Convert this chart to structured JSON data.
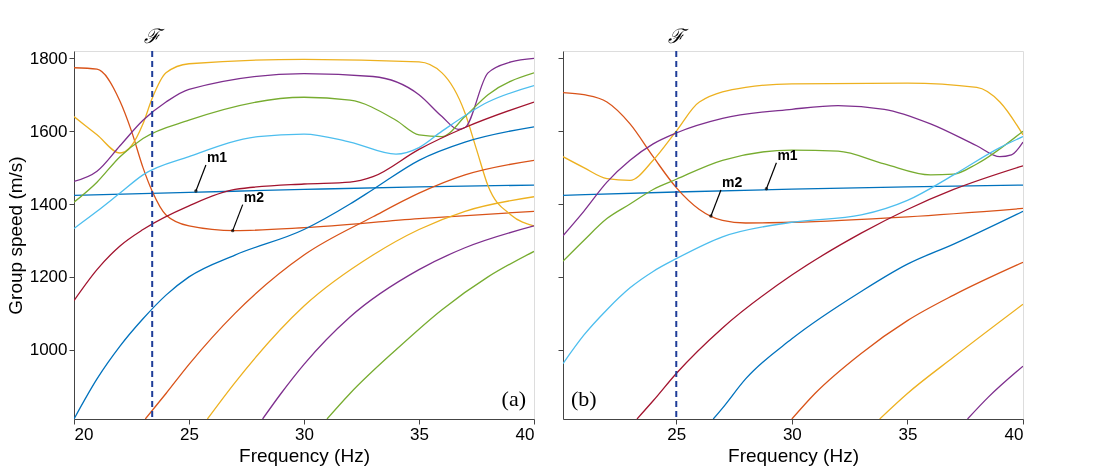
{
  "chart_data": [
    {
      "type": "line",
      "xlabel": "Frequency (Hz)",
      "ylabel": "Group speed (m/s)",
      "xlim": [
        20,
        40
      ],
      "ylim": [
        810,
        1820
      ],
      "xticks": [
        20,
        25,
        30,
        35,
        40
      ],
      "yticks": [
        1000,
        1200,
        1400,
        1600,
        1800
      ],
      "grid": false,
      "legend": false,
      "marker": "none",
      "line_style": "solid",
      "annotations": [
        {
          "text": "m1",
          "x": 25.3,
          "y": 1436
        },
        {
          "text": "m2",
          "x": 26.9,
          "y": 1327
        },
        "(a)"
      ],
      "ref_lines": [
        {
          "axis": "x",
          "value": 23.4,
          "label": "ℱ",
          "color": "#1f3d99",
          "line_style": "dashed"
        }
      ],
      "series": [
        {
          "color": "#0072bd",
          "x": [
            20,
            25,
            30,
            35,
            40
          ],
          "values": [
            1424,
            1432,
            1440,
            1447,
            1452
          ]
        },
        {
          "color": "#d95319",
          "x": [
            20,
            21,
            22,
            22.5,
            23,
            23.4,
            24,
            25,
            27,
            30,
            35,
            40
          ],
          "values": [
            1774,
            1770,
            1682,
            1600,
            1500,
            1435,
            1370,
            1340,
            1327,
            1335,
            1360,
            1380
          ]
        },
        {
          "color": "#edb120",
          "x": [
            20,
            21,
            22,
            22.5,
            23,
            23.4,
            24,
            25,
            30,
            35,
            36,
            37,
            37.5,
            38,
            39,
            40
          ],
          "values": [
            1640,
            1590,
            1540,
            1560,
            1620,
            1690,
            1760,
            1785,
            1797,
            1790,
            1760,
            1650,
            1550,
            1450,
            1370,
            1340
          ]
        },
        {
          "color": "#7e2f8e",
          "x": [
            20,
            21,
            22,
            23,
            24,
            25,
            30,
            33,
            35,
            36,
            36.7,
            37,
            38,
            39,
            40
          ],
          "values": [
            1462,
            1490,
            1560,
            1630,
            1680,
            1715,
            1758,
            1750,
            1700,
            1640,
            1605,
            1610,
            1760,
            1790,
            1800
          ]
        },
        {
          "color": "#77ac30",
          "x": [
            20,
            21,
            22,
            23,
            25,
            30,
            32,
            34,
            35,
            36,
            37,
            38,
            40
          ],
          "values": [
            1405,
            1460,
            1530,
            1580,
            1630,
            1693,
            1685,
            1630,
            1590,
            1585,
            1640,
            1700,
            1760
          ]
        },
        {
          "color": "#4dbeee",
          "x": [
            20,
            21,
            22,
            23,
            25,
            28,
            30,
            32,
            34,
            35,
            36,
            38,
            40
          ],
          "values": [
            1333,
            1380,
            1430,
            1480,
            1530,
            1585,
            1592,
            1570,
            1537,
            1555,
            1600,
            1680,
            1725
          ]
        },
        {
          "color": "#a2142f",
          "x": [
            20,
            21,
            22,
            23,
            25,
            27,
            30,
            32,
            33,
            35,
            37,
            40
          ],
          "values": [
            1135,
            1220,
            1285,
            1330,
            1395,
            1440,
            1455,
            1460,
            1475,
            1550,
            1610,
            1680
          ]
        },
        {
          "color": "#0072bd",
          "x": [
            20,
            21,
            22,
            23,
            24,
            25,
            27,
            30,
            32,
            33,
            35,
            37,
            40
          ],
          "values": [
            810,
            920,
            1010,
            1085,
            1150,
            1200,
            1260,
            1330,
            1400,
            1440,
            1520,
            1570,
            1612
          ]
        },
        {
          "color": "#d95319",
          "x": [
            23.1,
            24,
            25,
            27,
            30,
            33,
            35,
            37,
            40
          ],
          "values": [
            810,
            880,
            960,
            1100,
            1260,
            1365,
            1430,
            1480,
            1520
          ]
        },
        {
          "color": "#edb120",
          "x": [
            25.8,
            27,
            30,
            33,
            35,
            37,
            40
          ],
          "values": [
            810,
            910,
            1120,
            1260,
            1330,
            1380,
            1420
          ]
        },
        {
          "color": "#7e2f8e",
          "x": [
            28.2,
            29,
            30,
            32,
            35,
            37,
            40
          ],
          "values": [
            810,
            880,
            960,
            1090,
            1220,
            1280,
            1340
          ]
        },
        {
          "color": "#77ac30",
          "x": [
            31,
            32,
            34,
            36,
            38,
            40
          ],
          "values": [
            810,
            880,
            1000,
            1110,
            1200,
            1270
          ]
        }
      ]
    },
    {
      "type": "line",
      "xlabel": "Frequency (Hz)",
      "xlim": [
        20.1,
        40
      ],
      "ylim": [
        810,
        1820
      ],
      "xticks": [
        25,
        30,
        35,
        40
      ],
      "yticks": [
        {
          "value": 1000,
          "label": null
        },
        {
          "value": 1200,
          "label": null
        },
        {
          "value": 1400,
          "label": null
        },
        {
          "value": 1600,
          "label": null
        },
        {
          "value": 1800,
          "label": null
        }
      ],
      "tick_labels": "x",
      "grid": false,
      "legend": false,
      "marker": "none",
      "line_style": "solid",
      "annotations": [
        {
          "text": "m1",
          "x": 28.9,
          "y": 1442
        },
        {
          "text": "m2",
          "x": 26.5,
          "y": 1367
        },
        "(b)"
      ],
      "ref_lines": [
        {
          "axis": "x",
          "value": 25,
          "label": "ℱ",
          "color": "#1f3d99",
          "line_style": "dashed"
        }
      ],
      "series": [
        {
          "color": "#0072bd",
          "x": [
            20.1,
            25,
            30,
            35,
            40
          ],
          "values": [
            1424,
            1433,
            1441,
            1447,
            1452
          ]
        },
        {
          "color": "#d95319",
          "x": [
            20.1,
            21,
            22,
            23,
            24,
            25,
            26,
            27,
            28,
            30,
            35,
            40
          ],
          "values": [
            1706,
            1700,
            1680,
            1620,
            1530,
            1445,
            1385,
            1355,
            1348,
            1350,
            1365,
            1388
          ]
        },
        {
          "color": "#edb120",
          "x": [
            20.1,
            21,
            22,
            23,
            24,
            25,
            26,
            28,
            30,
            35,
            38,
            39,
            40
          ],
          "values": [
            1530,
            1500,
            1470,
            1465,
            1520,
            1600,
            1680,
            1720,
            1730,
            1732,
            1720,
            1680,
            1590
          ]
        },
        {
          "color": "#7e2f8e",
          "x": [
            20.1,
            21,
            22,
            23,
            24,
            25,
            27,
            30,
            32,
            34,
            36,
            38,
            39,
            39.5,
            40
          ],
          "values": [
            1313,
            1380,
            1460,
            1520,
            1565,
            1595,
            1635,
            1660,
            1670,
            1660,
            1620,
            1560,
            1530,
            1535,
            1570
          ]
        },
        {
          "color": "#77ac30",
          "x": [
            20.1,
            21,
            22,
            23,
            24,
            25,
            27,
            30,
            32,
            34,
            36,
            37,
            38,
            40
          ],
          "values": [
            1243,
            1300,
            1360,
            1400,
            1440,
            1468,
            1520,
            1548,
            1545,
            1510,
            1480,
            1482,
            1510,
            1600
          ]
        },
        {
          "color": "#4dbeee",
          "x": [
            20.1,
            21,
            22,
            23,
            24,
            25,
            27,
            30,
            33,
            35,
            37,
            39,
            40
          ],
          "values": [
            962,
            1040,
            1110,
            1170,
            1215,
            1250,
            1310,
            1350,
            1370,
            1410,
            1480,
            1555,
            1585
          ]
        },
        {
          "color": "#a2142f",
          "x": [
            23.3,
            24,
            25,
            27,
            30,
            33,
            35,
            37,
            40
          ],
          "values": [
            810,
            860,
            935,
            1060,
            1205,
            1320,
            1385,
            1440,
            1505
          ]
        },
        {
          "color": "#0072bd",
          "x": [
            26.6,
            27,
            28,
            30,
            33,
            35,
            37,
            40
          ],
          "values": [
            810,
            840,
            920,
            1030,
            1160,
            1235,
            1290,
            1380
          ]
        },
        {
          "color": "#d95319",
          "x": [
            30.0,
            31,
            33,
            35,
            37,
            40
          ],
          "values": [
            810,
            880,
            990,
            1080,
            1150,
            1240
          ]
        },
        {
          "color": "#edb120",
          "x": [
            33.8,
            35,
            37,
            40
          ],
          "values": [
            810,
            880,
            980,
            1125
          ]
        },
        {
          "color": "#7e2f8e",
          "x": [
            37.6,
            38.5,
            40
          ],
          "values": [
            810,
            870,
            955
          ]
        }
      ]
    }
  ]
}
